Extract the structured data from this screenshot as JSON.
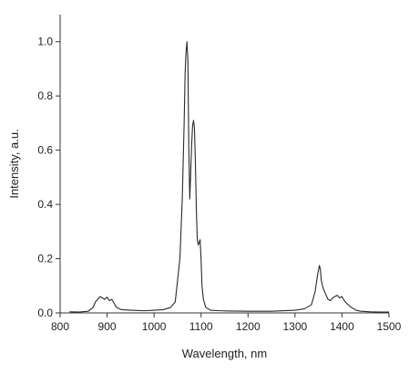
{
  "chart_data": {
    "type": "line",
    "title": "",
    "xlabel": "Wavelength, nm",
    "ylabel": "Intensity, a.u.",
    "xlim": [
      800,
      1500
    ],
    "ylim": [
      0,
      1.1
    ],
    "x_ticks": [
      800,
      900,
      1000,
      1100,
      1200,
      1300,
      1400,
      1500
    ],
    "x_tick_labels": [
      "800",
      "900",
      "1000",
      "1100",
      "1200",
      "1300",
      "1400",
      "1500"
    ],
    "y_ticks": [
      0.0,
      0.2,
      0.4,
      0.6,
      0.8,
      1.0
    ],
    "y_tick_labels": [
      "0.0",
      "0.2",
      "0.4",
      "0.6",
      "0.8",
      "1.0"
    ],
    "grid": false,
    "legend": "none",
    "series": [
      {
        "x": [
          820,
          840,
          860,
          870,
          875,
          880,
          885,
          890,
          895,
          900,
          905,
          910,
          915,
          920,
          930,
          950,
          980,
          1000,
          1020,
          1035,
          1045,
          1050,
          1055,
          1060,
          1064,
          1066,
          1068,
          1070,
          1072,
          1074,
          1076,
          1078,
          1080,
          1082,
          1084,
          1086,
          1088,
          1090,
          1092,
          1094,
          1096,
          1098,
          1100,
          1102,
          1105,
          1110,
          1120,
          1140,
          1160,
          1200,
          1250,
          1300,
          1320,
          1335,
          1343,
          1348,
          1352,
          1354,
          1356,
          1360,
          1365,
          1370,
          1375,
          1380,
          1385,
          1390,
          1395,
          1400,
          1405,
          1410,
          1420,
          1430,
          1440,
          1460,
          1480,
          1500
        ],
        "y": [
          0.004,
          0.003,
          0.006,
          0.02,
          0.04,
          0.05,
          0.06,
          0.055,
          0.05,
          0.058,
          0.045,
          0.05,
          0.035,
          0.02,
          0.012,
          0.01,
          0.008,
          0.01,
          0.012,
          0.02,
          0.04,
          0.12,
          0.2,
          0.42,
          0.7,
          0.88,
          0.96,
          1.0,
          0.93,
          0.6,
          0.42,
          0.52,
          0.62,
          0.69,
          0.71,
          0.68,
          0.55,
          0.38,
          0.27,
          0.25,
          0.26,
          0.27,
          0.2,
          0.1,
          0.05,
          0.02,
          0.01,
          0.008,
          0.007,
          0.006,
          0.006,
          0.01,
          0.015,
          0.03,
          0.08,
          0.14,
          0.175,
          0.16,
          0.12,
          0.09,
          0.07,
          0.05,
          0.045,
          0.055,
          0.06,
          0.065,
          0.055,
          0.06,
          0.045,
          0.035,
          0.02,
          0.01,
          0.006,
          0.004,
          0.003,
          0.003
        ]
      }
    ]
  }
}
